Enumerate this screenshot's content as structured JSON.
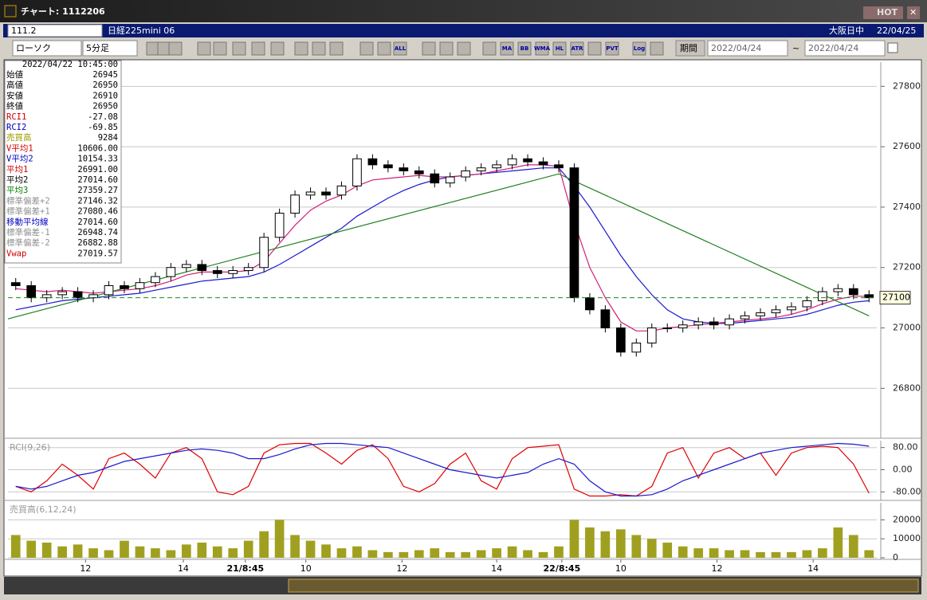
{
  "window": {
    "title": "チャート: 1112206",
    "hot": "HOT"
  },
  "toolbar": {
    "symbol": "111.2",
    "name": "日経225mini 06",
    "session": "大阪日中",
    "date": "22/04/25",
    "chart_style": "ローソク",
    "interval": "5分足",
    "buttons": [
      "ALL",
      "MA",
      "BB",
      "WMA",
      "HL",
      "ATR",
      "PVT",
      "Log"
    ],
    "period_label": "期間",
    "from": "2022/04/24",
    "tilde": "~",
    "to": "2022/04/24"
  },
  "info_panel": {
    "datetime": "2022/04/22 10:45:00",
    "rows": [
      {
        "label": "始値",
        "value": "26945",
        "color": "#000000"
      },
      {
        "label": "高値",
        "value": "26950",
        "color": "#000000"
      },
      {
        "label": "安値",
        "value": "26910",
        "color": "#000000"
      },
      {
        "label": "終値",
        "value": "26950",
        "color": "#000000"
      },
      {
        "label": "RCI1",
        "value": "-27.08",
        "color": "#d00000"
      },
      {
        "label": "RCI2",
        "value": "-69.85",
        "color": "#0000c0"
      },
      {
        "label": "売買高",
        "value": "9284",
        "color": "#9a9a00"
      },
      {
        "label": "V平均1",
        "value": "10606.00",
        "color": "#d00000"
      },
      {
        "label": "V平均2",
        "value": "10154.33",
        "color": "#0000c0"
      },
      {
        "label": "平均1",
        "value": "26991.00",
        "color": "#d00000"
      },
      {
        "label": "平均2",
        "value": "27014.60",
        "color": "#000000"
      },
      {
        "label": "平均3",
        "value": "27359.27",
        "color": "#008000"
      },
      {
        "label": "標準偏差+2",
        "value": "27146.32",
        "color": "#909090"
      },
      {
        "label": "標準偏差+1",
        "value": "27080.46",
        "color": "#909090"
      },
      {
        "label": "移動平均線",
        "value": "27014.60",
        "color": "#0000c0"
      },
      {
        "label": "標準偏差-1",
        "value": "26948.74",
        "color": "#909090"
      },
      {
        "label": "標準偏差-2",
        "value": "26882.88",
        "color": "#909090"
      },
      {
        "label": "Vwap",
        "value": "27019.57",
        "color": "#d00000"
      }
    ]
  },
  "chart_data": [
    {
      "type": "candlestick",
      "xlim": [
        0,
        56
      ],
      "ylim": [
        26640,
        27880
      ],
      "yticks": [
        26800,
        27000,
        27200,
        27400,
        27600,
        27800
      ],
      "xticks": [
        {
          "value": 5,
          "label": "12"
        },
        {
          "value": 11.3,
          "label": "14"
        },
        {
          "value": 15.3,
          "label": "21/8:45"
        },
        {
          "value": 19.2,
          "label": "10"
        },
        {
          "value": 25.4,
          "label": "12"
        },
        {
          "value": 31.5,
          "label": "14"
        },
        {
          "value": 35.7,
          "label": "22/8:45"
        },
        {
          "value": 39.5,
          "label": "10"
        },
        {
          "value": 45.7,
          "label": "12"
        },
        {
          "value": 51.9,
          "label": "14"
        }
      ],
      "current_price": 27100,
      "open": [
        27150,
        27140,
        27100,
        27110,
        27120,
        27100,
        27110,
        27140,
        27130,
        27150,
        27170,
        27200,
        27210,
        27190,
        27180,
        27190,
        27200,
        27300,
        27380,
        27440,
        27450,
        27440,
        27470,
        27560,
        27540,
        27530,
        27520,
        27510,
        27480,
        27500,
        27520,
        27530,
        27540,
        27560,
        27550,
        27540,
        27530,
        27100,
        27060,
        27000,
        26920,
        26950,
        27000,
        27000,
        27010,
        27020,
        27010,
        27030,
        27040,
        27050,
        27060,
        27070,
        27090,
        27120,
        27130,
        27110
      ],
      "high": [
        27165,
        27155,
        27125,
        27135,
        27135,
        27125,
        27155,
        27155,
        27165,
        27185,
        27215,
        27225,
        27225,
        27205,
        27205,
        27215,
        27315,
        27395,
        27455,
        27465,
        27465,
        27485,
        27575,
        27575,
        27555,
        27545,
        27535,
        27525,
        27515,
        27535,
        27545,
        27555,
        27575,
        27575,
        27565,
        27555,
        27545,
        27115,
        27075,
        27015,
        26965,
        27015,
        27015,
        27025,
        27035,
        27035,
        27045,
        27055,
        27065,
        27075,
        27085,
        27105,
        27135,
        27145,
        27145,
        27125
      ],
      "low": [
        27125,
        27085,
        27085,
        27095,
        27085,
        27085,
        27095,
        27115,
        27115,
        27135,
        27155,
        27185,
        27175,
        27165,
        27165,
        27175,
        27185,
        27285,
        27365,
        27425,
        27425,
        27425,
        27455,
        27525,
        27515,
        27505,
        27495,
        27465,
        27465,
        27485,
        27505,
        27515,
        27525,
        27535,
        27525,
        27515,
        27085,
        27045,
        26985,
        26905,
        26905,
        26935,
        26985,
        26985,
        26995,
        26995,
        26995,
        27015,
        27025,
        27035,
        27045,
        27055,
        27075,
        27105,
        27095,
        27085
      ],
      "close": [
        27140,
        27100,
        27110,
        27120,
        27100,
        27110,
        27140,
        27130,
        27150,
        27170,
        27200,
        27210,
        27190,
        27180,
        27190,
        27200,
        27300,
        27380,
        27440,
        27450,
        27440,
        27470,
        27560,
        27540,
        27530,
        27520,
        27510,
        27480,
        27500,
        27520,
        27530,
        27540,
        27560,
        27550,
        27540,
        27530,
        27100,
        27060,
        27000,
        26920,
        26950,
        27000,
        27000,
        27010,
        27020,
        27010,
        27030,
        27040,
        27050,
        27060,
        27070,
        27090,
        27120,
        27130,
        27110,
        27100
      ],
      "series": [
        {
          "color": "#1a1ad0",
          "values": [
            27060,
            27070,
            27080,
            27090,
            27095,
            27100,
            27105,
            27110,
            27115,
            27125,
            27135,
            27145,
            27155,
            27160,
            27165,
            27170,
            27185,
            27210,
            27240,
            27270,
            27300,
            27330,
            27370,
            27400,
            27430,
            27455,
            27475,
            27490,
            27500,
            27505,
            27510,
            27515,
            27520,
            27525,
            27530,
            27530,
            27470,
            27400,
            27320,
            27240,
            27170,
            27110,
            27060,
            27030,
            27020,
            27015,
            27015,
            27020,
            27025,
            27030,
            27035,
            27045,
            27060,
            27075,
            27085,
            27090
          ]
        },
        {
          "color": "#d0207a",
          "values": [
            27130,
            27125,
            27120,
            27125,
            27120,
            27115,
            27120,
            27125,
            27130,
            27140,
            27155,
            27175,
            27185,
            27185,
            27185,
            27190,
            27220,
            27280,
            27340,
            27390,
            27420,
            27440,
            27470,
            27490,
            27495,
            27500,
            27505,
            27500,
            27500,
            27505,
            27510,
            27520,
            27530,
            27540,
            27540,
            27535,
            27350,
            27200,
            27100,
            27020,
            26990,
            26990,
            27000,
            27005,
            27010,
            27015,
            27020,
            27025,
            27030,
            27035,
            27045,
            27060,
            27080,
            27095,
            27105,
            27105
          ]
        },
        {
          "color": "#208020",
          "x": [
            0,
            35.5,
            55.5
          ],
          "values": [
            27030,
            27510,
            27040
          ]
        }
      ]
    },
    {
      "type": "line",
      "label": "RCI(9,26)",
      "ylim": [
        -105,
        105
      ],
      "yticks": [
        {
          "value": 80,
          "label": "80.00"
        },
        {
          "value": 0,
          "label": "0.00"
        },
        {
          "value": -80,
          "label": "-80.00"
        }
      ],
      "series": [
        {
          "color": "#e00000",
          "values": [
            -60,
            -80,
            -40,
            20,
            -20,
            -70,
            40,
            60,
            20,
            -30,
            60,
            80,
            40,
            -80,
            -90,
            -60,
            60,
            90,
            95,
            95,
            60,
            20,
            70,
            90,
            40,
            -60,
            -80,
            -50,
            20,
            60,
            -40,
            -70,
            40,
            80,
            85,
            90,
            -70,
            -95,
            -95,
            -90,
            -95,
            -60,
            60,
            80,
            -30,
            60,
            80,
            40,
            60,
            -20,
            60,
            80,
            85,
            80,
            20,
            -85
          ]
        },
        {
          "color": "#1a1ad0",
          "values": [
            -60,
            -70,
            -60,
            -40,
            -20,
            -10,
            10,
            30,
            40,
            50,
            60,
            70,
            75,
            70,
            60,
            40,
            40,
            55,
            75,
            90,
            95,
            95,
            90,
            85,
            80,
            60,
            40,
            20,
            0,
            -10,
            -20,
            -30,
            -20,
            -10,
            20,
            40,
            20,
            -40,
            -80,
            -95,
            -95,
            -90,
            -70,
            -40,
            -20,
            0,
            20,
            40,
            60,
            70,
            80,
            85,
            90,
            95,
            92,
            85
          ]
        }
      ]
    },
    {
      "type": "bar",
      "label": "売買高(6,12,24)",
      "ylim": [
        0,
        29000
      ],
      "yticks": [
        20000,
        10000,
        0
      ],
      "color": "#a0a020",
      "values": [
        12000,
        9000,
        8000,
        6000,
        7000,
        5000,
        4000,
        9000,
        6000,
        5000,
        4000,
        7000,
        8000,
        6000,
        5000,
        9000,
        14000,
        20000,
        12000,
        9000,
        7000,
        5000,
        6000,
        4000,
        3000,
        3000,
        4000,
        5000,
        3000,
        3000,
        4000,
        5000,
        6000,
        4000,
        3000,
        6000,
        20000,
        16000,
        14000,
        15000,
        12000,
        10000,
        8000,
        6000,
        5000,
        5000,
        4000,
        4000,
        3000,
        3000,
        3000,
        4000,
        5000,
        16000,
        12000,
        4000
      ]
    }
  ]
}
